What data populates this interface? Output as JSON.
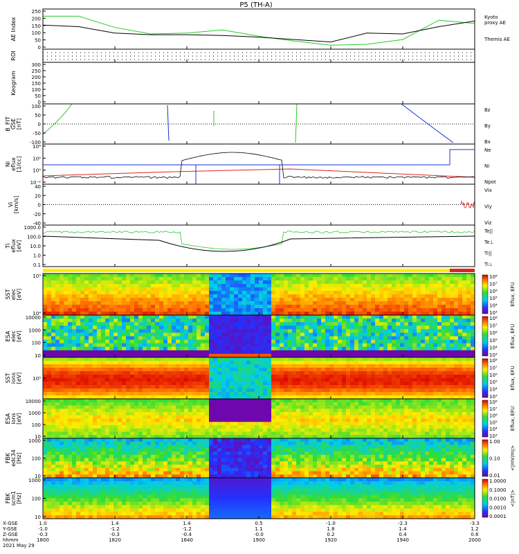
{
  "title": "P5 (TH-A)",
  "footer": {
    "rows": [
      {
        "label": "X-GSE",
        "values": [
          "1.0",
          "1.4",
          "1.4",
          "0.5",
          "-1.0",
          "-2.3",
          "-3.3"
        ]
      },
      {
        "label": "Y-GSE",
        "values": [
          "-1.0",
          "-1.2",
          "-1.2",
          "1.1",
          "1.8",
          "1.4",
          "1.2"
        ]
      },
      {
        "label": "Z-GSE",
        "values": [
          "-0.3",
          "-0.3",
          "-0.4",
          "-0.0",
          "0.2",
          "0.4",
          "0.6"
        ]
      },
      {
        "label": "hhmm",
        "values": [
          "1800",
          "1820",
          "1840",
          "1900",
          "1920",
          "1940",
          "2000"
        ]
      }
    ],
    "date": "2021 May 29"
  },
  "colors": {
    "green": "#22cc22",
    "red": "#dd2222",
    "blue": "#1133cc",
    "black": "#000000"
  },
  "chart_data": [
    {
      "type": "line",
      "panel": "ae",
      "ylabel": "AE Index",
      "ylim": [
        0,
        250
      ],
      "yticks": [
        "0",
        "50",
        "100",
        "150",
        "200",
        "250"
      ],
      "x": [
        "1800",
        "1810",
        "1820",
        "1830",
        "1840",
        "1850",
        "1900",
        "1910",
        "1920",
        "1930",
        "1940",
        "1950",
        "2000"
      ],
      "series": [
        {
          "name": "Kyoto\nproxy AE",
          "color": "#22cc22",
          "values": [
            205,
            205,
            135,
            95,
            100,
            120,
            80,
            50,
            25,
            30,
            60,
            180,
            160
          ]
        },
        {
          "name": "Themis AE",
          "color": "#000000",
          "values": [
            150,
            140,
            100,
            90,
            90,
            85,
            75,
            60,
            45,
            100,
            95,
            140,
            175
          ]
        }
      ]
    },
    {
      "type": "line",
      "panel": "roi",
      "ylabel": "ROI"
    },
    {
      "type": "line",
      "panel": "keogram",
      "ylabel": "Keogram",
      "ylim": [
        0,
        300
      ],
      "yticks": [
        "0",
        "50",
        "100",
        "150",
        "200",
        "250",
        "300"
      ]
    },
    {
      "type": "line",
      "panel": "bfield",
      "ylabel": "B_FIT\nGSE\n[nT]",
      "ylim": [
        -100,
        100
      ],
      "yticks": [
        "-100",
        "-50",
        "0",
        "50",
        "100"
      ],
      "legend": [
        {
          "name": "Bz",
          "color": "#dd2222"
        },
        {
          "name": "By",
          "color": "#22cc22"
        },
        {
          "name": "Bx",
          "color": "#1133cc"
        }
      ]
    },
    {
      "type": "line",
      "panel": "density",
      "ylabel": "Ni\neflux\n[1/cc]",
      "yscale": "log",
      "yticks": [
        "10⁻²",
        "10⁰",
        "10²",
        "10⁴"
      ],
      "legend": [
        {
          "name": "Ne",
          "color": "#dd2222"
        },
        {
          "name": "Ni",
          "color": "#000000"
        },
        {
          "name": "Npot",
          "color": "#1133cc"
        }
      ]
    },
    {
      "type": "line",
      "panel": "velocity",
      "ylabel": "Vi\n[km/s]",
      "ylim": [
        -50,
        50
      ],
      "yticks": [
        "-40",
        "-20",
        "0",
        "20",
        "40"
      ],
      "legend": [
        {
          "name": "Vix",
          "color": "#dd2222"
        },
        {
          "name": "Viy",
          "color": "#22cc22"
        },
        {
          "name": "Viz",
          "color": "#1133cc"
        }
      ]
    },
    {
      "type": "line",
      "panel": "temperature",
      "ylabel": "Ti\neflux\n[eV]",
      "yscale": "log",
      "yticks": [
        "0.1",
        "1.0",
        "10.0",
        "100.0",
        "1000.0"
      ],
      "legend": [
        {
          "name": "Te||",
          "color": "#000000"
        },
        {
          "name": "Te⊥",
          "color": "#dd2222"
        },
        {
          "name": "Ti||",
          "color": "#22cc22"
        },
        {
          "name": "Ti⊥",
          "color": "#1133cc"
        }
      ]
    },
    {
      "type": "heatmap",
      "panel": "sst_e",
      "ylabel": "SST\nelec\n[eV]",
      "yticks": [
        "10⁴",
        "10³"
      ],
      "colorbar": {
        "label": "Eflux, EFU",
        "ticks": [
          "10³",
          "10⁴",
          "10⁵",
          "10⁶",
          "10⁷",
          "10⁸"
        ]
      }
    },
    {
      "type": "heatmap",
      "panel": "esa_e",
      "ylabel": "ESA\nelec\n[eV]",
      "yticks": [
        "10",
        "100",
        "1000",
        "10000"
      ],
      "colorbar": {
        "label": "Eflux, EFU",
        "ticks": [
          "10³",
          "10⁴",
          "10⁵",
          "10⁶",
          "10⁷",
          "10⁸"
        ]
      }
    },
    {
      "type": "heatmap",
      "panel": "sst_i",
      "ylabel": "SST\nions\n[eV]",
      "yticks": [
        "10⁵"
      ],
      "colorbar": {
        "label": "Eflux, EFU",
        "ticks": [
          "10³",
          "10⁴",
          "10⁵",
          "10⁶",
          "10⁷",
          "10⁸"
        ]
      }
    },
    {
      "type": "heatmap",
      "panel": "esa_i",
      "ylabel": "ESA\nions\n[eV]",
      "yticks": [
        "10",
        "100",
        "1000",
        "10000"
      ],
      "colorbar": {
        "label": "Eflux, EFU",
        "ticks": [
          "10³",
          "10⁴",
          "10⁵",
          "10⁶",
          "10⁷",
          "10⁸"
        ]
      }
    },
    {
      "type": "heatmap",
      "panel": "fbk_e",
      "ylabel": "FBK\nedc34\n[Hz]",
      "yticks": [
        "10",
        "100",
        "1000"
      ],
      "colorbar": {
        "label": "<|mV/m|>",
        "ticks": [
          "0.01",
          "0.10",
          "1.00"
        ]
      }
    },
    {
      "type": "heatmap",
      "panel": "fbk_b",
      "ylabel": "FBK\nscm1\n[Hz]",
      "yticks": [
        "10",
        "100",
        "1000"
      ],
      "colorbar": {
        "label": "<|nT|>",
        "ticks": [
          "0.0001",
          "0.0010",
          "0.0100",
          "0.1000",
          "1.0000"
        ]
      }
    }
  ]
}
